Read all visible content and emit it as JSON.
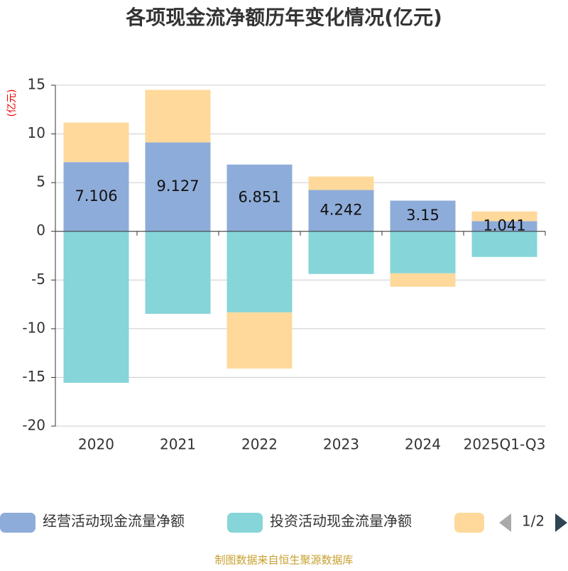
{
  "chart_data": {
    "type": "stacked_bar",
    "title": "各项现金流净额历年变化情况(亿元)",
    "y_axis_label": "(亿元)",
    "categories": [
      "2020",
      "2021",
      "2022",
      "2023",
      "2024",
      "2025Q1-Q3"
    ],
    "series": [
      {
        "name": "经营活动现金流量净额",
        "color": "#8eacd9",
        "values": [
          7.106,
          9.127,
          6.851,
          4.242,
          3.15,
          1.041
        ],
        "show_labels": true
      },
      {
        "name": "投资活动现金流量净额",
        "color": "#86d5d8",
        "values": [
          -15.55,
          -8.47,
          -8.32,
          -4.38,
          -4.31,
          -2.63
        ]
      },
      {
        "color": "#fed99b",
        "values": [
          4.06,
          5.4,
          -5.77,
          1.38,
          -1.38,
          1.0
        ]
      }
    ],
    "ylim": [
      -20,
      15
    ],
    "yticks": [
      -20,
      -15,
      -10,
      -5,
      0,
      5,
      10,
      15
    ],
    "grid": true,
    "legend_page": "1/2",
    "source": "制图数据来自恒生聚源数据库"
  }
}
